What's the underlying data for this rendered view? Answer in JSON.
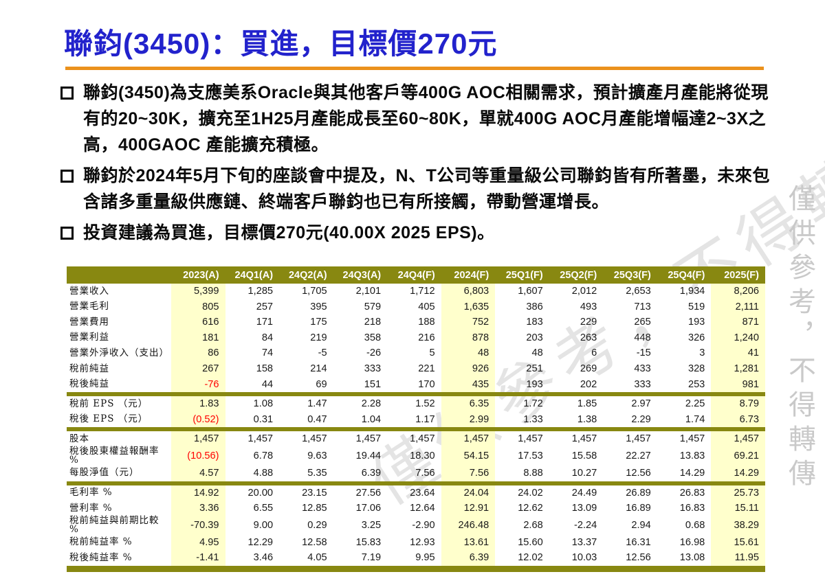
{
  "page": {
    "title": "聯鈞(3450)：買進，目標價270元",
    "bullets": [
      "聯鈞(3450)為支應美系Oracle與其他客戶等400G  AOC相關需求，預計擴產月產能將從現有的20~30K，擴充至1H25月產能成長至60~80K，單就400G AOC月產能增幅達2~3X之高，400GAOC 產能擴充積極。",
      "聯鈞於2024年5月下旬的座談會中提及，N、T公司等重量級公司聯鈞皆有所著墨，未來包含諸多重量級供應鏈、終端客戶聯鈞也已有所接觸，帶動營運增長。",
      "投資建議為買進，目標價270元(40.00X 2025 EPS)。"
    ],
    "watermark_vertical": "僅供參考，不得轉傳",
    "watermark_diagonal": "僅供參考，不得轉傳",
    "colors": {
      "title_blue": "#2222CC",
      "rule_orange": "#EB911C",
      "header_olive": "#888811",
      "highlight_yellow": "#FFFFCC",
      "negative_red": "#FF0000"
    }
  },
  "table": {
    "columns": [
      "2023(A)",
      "24Q1(A)",
      "24Q2(A)",
      "24Q3(A)",
      "24Q4(F)",
      "2024(F)",
      "25Q1(F)",
      "25Q2(F)",
      "25Q3(F)",
      "25Q4(F)",
      "2025(F)"
    ],
    "highlight_columns": [
      0,
      5,
      10
    ],
    "sections": [
      {
        "rows": [
          {
            "label": "營業收入",
            "values": [
              "5,399",
              "1,285",
              "1,705",
              "2,101",
              "1,712",
              "6,803",
              "1,607",
              "2,012",
              "2,653",
              "1,934",
              "8,206"
            ]
          },
          {
            "label": "營業毛利",
            "values": [
              "805",
              "257",
              "395",
              "579",
              "405",
              "1,635",
              "386",
              "493",
              "713",
              "519",
              "2,111"
            ]
          },
          {
            "label": "營業費用",
            "values": [
              "616",
              "171",
              "175",
              "218",
              "188",
              "752",
              "183",
              "229",
              "265",
              "193",
              "871"
            ]
          },
          {
            "label": "營業利益",
            "values": [
              "181",
              "84",
              "219",
              "358",
              "216",
              "878",
              "203",
              "263",
              "448",
              "326",
              "1,240"
            ]
          },
          {
            "label": "營業外淨收入（支出）",
            "values": [
              "86",
              "74",
              "-5",
              "-26",
              "5",
              "48",
              "48",
              "6",
              "-15",
              "3",
              "41"
            ]
          },
          {
            "label": "稅前純益",
            "values": [
              "267",
              "158",
              "214",
              "333",
              "221",
              "926",
              "251",
              "269",
              "433",
              "328",
              "1,281"
            ]
          },
          {
            "label": "稅後純益",
            "values": [
              "-76",
              "44",
              "69",
              "151",
              "170",
              "435",
              "193",
              "202",
              "333",
              "253",
              "981"
            ],
            "red": [
              0
            ]
          }
        ]
      },
      {
        "rows": [
          {
            "label": "稅前 EPS （元）",
            "values": [
              "1.83",
              "1.08",
              "1.47",
              "2.28",
              "1.52",
              "6.35",
              "1.72",
              "1.85",
              "2.97",
              "2.25",
              "8.79"
            ]
          },
          {
            "label": "稅後 EPS （元）",
            "values": [
              "(0.52)",
              "0.31",
              "0.47",
              "1.04",
              "1.17",
              "2.99",
              "1.33",
              "1.38",
              "2.29",
              "1.74",
              "6.73"
            ],
            "red": [
              0
            ]
          }
        ]
      },
      {
        "rows": [
          {
            "label": "股本",
            "values": [
              "1,457",
              "1,457",
              "1,457",
              "1,457",
              "1,457",
              "1,457",
              "1,457",
              "1,457",
              "1,457",
              "1,457",
              "1,457"
            ]
          },
          {
            "label": "稅後股東權益報酬率 %",
            "values": [
              "(10.56)",
              "6.78",
              "9.63",
              "19.44",
              "18.30",
              "54.15",
              "17.53",
              "15.58",
              "22.27",
              "13.83",
              "69.21"
            ],
            "red": [
              0
            ]
          },
          {
            "label": "每股淨值（元）",
            "values": [
              "4.57",
              "4.88",
              "5.35",
              "6.39",
              "7.56",
              "7.56",
              "8.88",
              "10.27",
              "12.56",
              "14.29",
              "14.29"
            ]
          }
        ]
      },
      {
        "rows": [
          {
            "label": "毛利率 %",
            "values": [
              "14.92",
              "20.00",
              "23.15",
              "27.56",
              "23.64",
              "24.04",
              "24.02",
              "24.49",
              "26.89",
              "26.83",
              "25.73"
            ]
          },
          {
            "label": "營利率 %",
            "values": [
              "3.36",
              "6.55",
              "12.85",
              "17.06",
              "12.64",
              "12.91",
              "12.62",
              "13.09",
              "16.89",
              "16.83",
              "15.11"
            ]
          },
          {
            "label": "稅前純益與前期比較 %",
            "values": [
              "-70.39",
              "9.00",
              "0.29",
              "3.25",
              "-2.90",
              "246.48",
              "2.68",
              "-2.24",
              "2.94",
              "0.68",
              "38.29"
            ]
          },
          {
            "label": "稅前純益率 %",
            "values": [
              "4.95",
              "12.29",
              "12.58",
              "15.83",
              "12.93",
              "13.61",
              "15.60",
              "13.37",
              "16.31",
              "16.98",
              "15.61"
            ]
          },
          {
            "label": "稅後純益率 %",
            "values": [
              "-1.41",
              "3.46",
              "4.05",
              "7.19",
              "9.95",
              "6.39",
              "12.02",
              "10.03",
              "12.56",
              "13.08",
              "11.95"
            ]
          }
        ]
      }
    ]
  }
}
